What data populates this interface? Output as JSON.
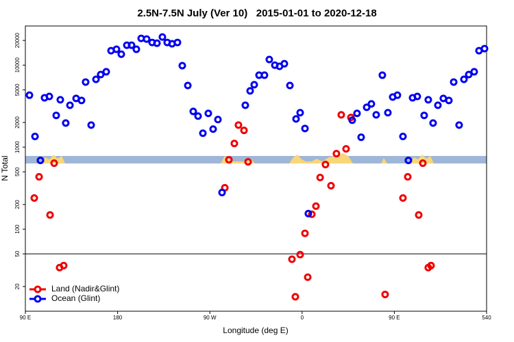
{
  "chart_data": {
    "type": "scatter",
    "title": "2.5N-7.5N July (Ver 10)   2015-01-01 to 2020-12-18",
    "xlabel": "Longitude (deg E)",
    "ylabel": "N Total",
    "xlim": [
      90,
      540
    ],
    "xticks": [
      {
        "value": 90,
        "label": "90 E"
      },
      180,
      {
        "value": 270,
        "label": "90 W"
      },
      {
        "value": 360,
        "label": "0"
      },
      {
        "value": 450,
        "label": "90 E"
      },
      540
    ],
    "ylim": [
      10,
      30000
    ],
    "ylog": true,
    "yticks": [
      20,
      50,
      100,
      200,
      500,
      1000,
      2000,
      5000,
      10000,
      20000
    ],
    "hline": 50,
    "legend": "lower left",
    "series": [
      {
        "name": "Land (Nadir&Glint)",
        "color": "#ee0000",
        "x": [
          98.7,
          103.4,
          114.1,
          118.1,
          123.4,
          127.4,
          284.6,
          288.6,
          293.9,
          297.9,
          303.3,
          307.3,
          350.1,
          353.4,
          358.1,
          362.8,
          365.5,
          369.5,
          373.5,
          377.6,
          382.8,
          388.2,
          393.5,
          398.2,
          402.9,
          407.6,
          441.0,
          458.4,
          463.1,
          473.8,
          477.8,
          483.1,
          485.8
        ],
        "values": [
          240,
          435,
          149,
          638,
          34,
          36,
          320,
          702,
          1110,
          1860,
          1600,
          662,
          43,
          15,
          49,
          89,
          26,
          152,
          191,
          427,
          614,
          339,
          834,
          2480,
          953,
          2300,
          16,
          240,
          435,
          149,
          638,
          34,
          36
        ]
      },
      {
        "name": "Ocean (Glint)",
        "color": "#0000ee",
        "x": [
          94.0,
          99.4,
          104.7,
          108.7,
          113.4,
          120.1,
          124.1,
          129.4,
          133.5,
          139.5,
          144.8,
          148.8,
          154.2,
          158.9,
          163.5,
          168.9,
          173.6,
          178.9,
          183.6,
          189.0,
          193.6,
          198.3,
          203.0,
          208.3,
          213.7,
          218.4,
          223.7,
          228.4,
          233.1,
          238.4,
          243.1,
          248.5,
          253.8,
          258.5,
          263.2,
          268.5,
          273.2,
          277.9,
          281.9,
          304.6,
          309.3,
          313.3,
          318.0,
          323.3,
          328.0,
          333.4,
          338.0,
          342.7,
          348.1,
          354.1,
          358.1,
          362.8,
          366.1,
          408.9,
          413.6,
          417.6,
          423.0,
          427.6,
          432.3,
          438.3,
          443.7,
          448.4,
          453.0,
          458.4,
          463.7,
          467.8,
          472.4,
          479.1,
          483.1,
          487.8,
          492.5,
          497.8,
          503.2,
          507.9,
          513.2,
          517.9,
          522.6,
          527.9,
          532.6,
          538.0
        ],
        "values": [
          4300,
          1350,
          690,
          4000,
          4150,
          2440,
          3780,
          1970,
          3240,
          3930,
          3710,
          6220,
          1860,
          6710,
          7680,
          8300,
          15000,
          15600,
          13600,
          17500,
          17500,
          15600,
          21200,
          20800,
          18900,
          18500,
          22000,
          18900,
          18200,
          18900,
          9850,
          5650,
          2730,
          2390,
          1480,
          2580,
          1660,
          2170,
          280,
          3240,
          4850,
          5770,
          7540,
          7540,
          11700,
          10000,
          9660,
          10400,
          5650,
          2210,
          2630,
          1690,
          155,
          2130,
          2580,
          1320,
          3060,
          3370,
          2480,
          7540,
          2630,
          4080,
          4300,
          1350,
          690,
          4000,
          4150,
          2440,
          3780,
          1970,
          3240,
          3930,
          3710,
          6220,
          1860,
          6710,
          7680,
          8300,
          15000,
          15900
        ]
      }
    ]
  }
}
